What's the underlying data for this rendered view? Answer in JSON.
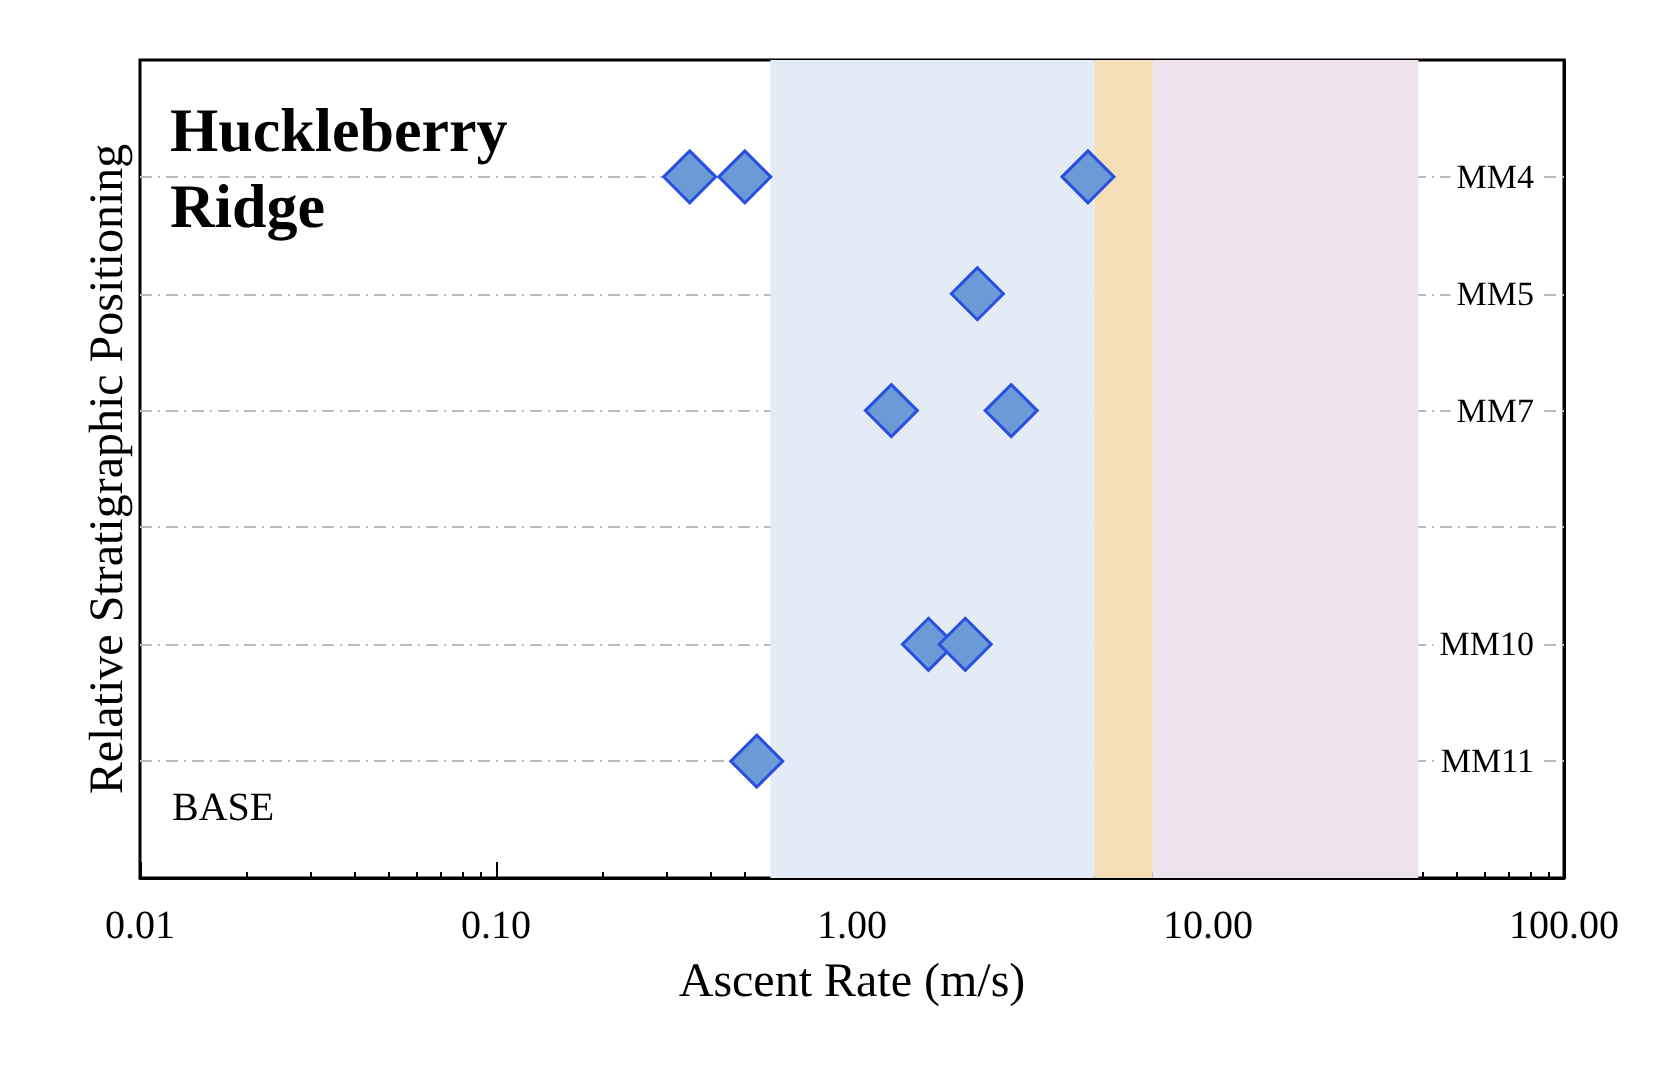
{
  "chart_data": {
    "type": "scatter",
    "orientation": "horizontal",
    "title": "Huckleberry Ridge",
    "xlabel": "Ascent Rate (m/s)",
    "ylabel": "Relative Stratigraphic Positioning",
    "log": "x",
    "xlim": [
      0.01,
      100
    ],
    "xticks": [
      {
        "value": 0.01,
        "label": "0.01"
      },
      {
        "value": 0.1,
        "label": "0.10"
      },
      {
        "value": 1,
        "label": "1.00"
      },
      {
        "value": 10,
        "label": "10.00"
      },
      {
        "value": 100,
        "label": "100.00"
      }
    ],
    "categories": [
      "MM4",
      "MM5",
      "MM7",
      null,
      "MM10",
      "MM11"
    ],
    "grid": "y",
    "marker": "diamond",
    "series": [
      {
        "color": "#6a9bd6",
        "values": [
          0.35,
          2.25,
          1.29,
          null,
          1.64,
          0.54
        ]
      },
      {
        "color": "#6a9bd6",
        "values": [
          0.5,
          null,
          2.8,
          null,
          2.08,
          null
        ]
      },
      {
        "color": "#6a9bd6",
        "values": [
          4.6,
          null,
          null,
          null,
          null,
          null
        ]
      }
    ],
    "bands": [
      {
        "axis": "x",
        "from": 0.59,
        "to": 4.8,
        "color": "#e3ecf6"
      },
      {
        "axis": "x",
        "from": 4.8,
        "to": 7,
        "color": "#f5dfb8"
      },
      {
        "axis": "x",
        "from": 7,
        "to": 39,
        "color": "#ece3ec"
      }
    ],
    "annotations": [
      "BASE"
    ]
  }
}
